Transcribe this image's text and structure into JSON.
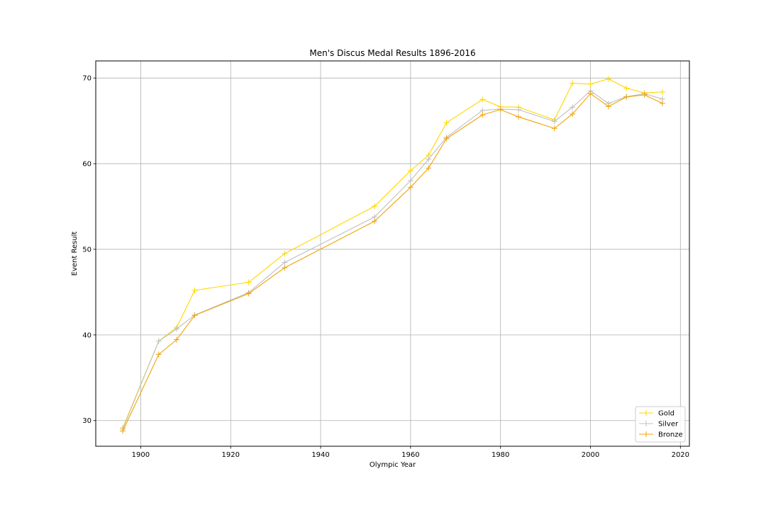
{
  "chart_data": {
    "type": "line",
    "title": "Men's Discus Medal Results 1896-2016",
    "xlabel": "Olympic Year",
    "ylabel": "Event Result",
    "xlim": [
      1890,
      2022
    ],
    "ylim": [
      27,
      72
    ],
    "xticks": [
      1900,
      1920,
      1940,
      1960,
      1980,
      2000,
      2020
    ],
    "yticks": [
      30,
      40,
      50,
      60,
      70
    ],
    "grid": true,
    "legend_position": "lower-right",
    "series": [
      {
        "name": "Gold",
        "color": "#ffd700",
        "marker": "+",
        "points": [
          [
            1896,
            29.15
          ],
          [
            1904,
            39.28
          ],
          [
            1908,
            40.89
          ],
          [
            1912,
            45.21
          ],
          [
            1924,
            46.15
          ],
          [
            1932,
            49.49
          ],
          [
            1952,
            55.03
          ],
          [
            1960,
            59.18
          ],
          [
            1964,
            61.0
          ],
          [
            1968,
            64.78
          ],
          [
            1976,
            67.5
          ],
          [
            1980,
            66.64
          ],
          [
            1984,
            66.6
          ],
          [
            1992,
            65.12
          ],
          [
            1996,
            69.4
          ],
          [
            2000,
            69.3
          ],
          [
            2004,
            69.89
          ],
          [
            2008,
            68.82
          ],
          [
            2012,
            68.27
          ],
          [
            2016,
            68.37
          ]
        ]
      },
      {
        "name": "Silver",
        "color": "#c0c0c0",
        "marker": "+",
        "points": [
          [
            1896,
            29.0
          ],
          [
            1904,
            39.28
          ],
          [
            1908,
            40.7
          ],
          [
            1912,
            42.32
          ],
          [
            1924,
            44.95
          ],
          [
            1932,
            48.47
          ],
          [
            1952,
            53.78
          ],
          [
            1960,
            58.02
          ],
          [
            1964,
            60.52
          ],
          [
            1968,
            63.08
          ],
          [
            1976,
            66.22
          ],
          [
            1980,
            66.38
          ],
          [
            1984,
            66.3
          ],
          [
            1992,
            64.94
          ],
          [
            1996,
            66.6
          ],
          [
            2000,
            68.5
          ],
          [
            2004,
            67.04
          ],
          [
            2008,
            67.82
          ],
          [
            2012,
            68.18
          ],
          [
            2016,
            67.55
          ]
        ]
      },
      {
        "name": "Bronze",
        "color": "#f0a30a",
        "marker": "+",
        "points": [
          [
            1896,
            28.78
          ],
          [
            1904,
            37.72
          ],
          [
            1908,
            39.45
          ],
          [
            1912,
            42.28
          ],
          [
            1924,
            44.83
          ],
          [
            1932,
            47.85
          ],
          [
            1952,
            53.28
          ],
          [
            1960,
            57.24
          ],
          [
            1964,
            59.49
          ],
          [
            1968,
            62.92
          ],
          [
            1976,
            65.7
          ],
          [
            1980,
            66.32
          ],
          [
            1984,
            65.46
          ],
          [
            1992,
            64.12
          ],
          [
            1996,
            65.8
          ],
          [
            2000,
            68.19
          ],
          [
            2004,
            66.68
          ],
          [
            2008,
            67.79
          ],
          [
            2012,
            68.03
          ],
          [
            2016,
            67.05
          ]
        ]
      }
    ]
  }
}
